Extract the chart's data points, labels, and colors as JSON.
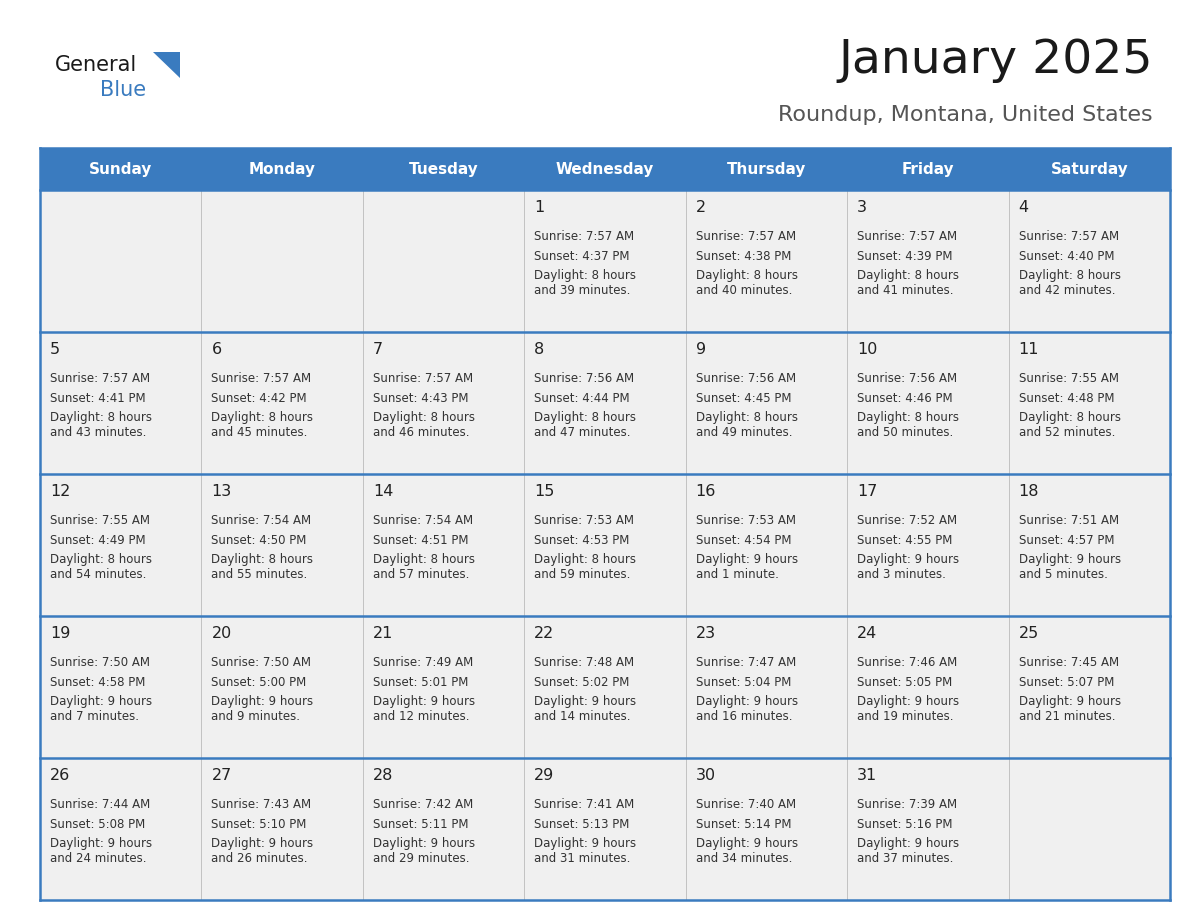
{
  "title": "January 2025",
  "subtitle": "Roundup, Montana, United States",
  "header_bg": "#3a7bbf",
  "header_text_color": "#ffffff",
  "cell_bg": "#f0f0f0",
  "grid_line_color": "#3a7bbf",
  "days_of_week": [
    "Sunday",
    "Monday",
    "Tuesday",
    "Wednesday",
    "Thursday",
    "Friday",
    "Saturday"
  ],
  "weeks": [
    [
      {
        "day": "",
        "sunrise": "",
        "sunset": "",
        "daylight": ""
      },
      {
        "day": "",
        "sunrise": "",
        "sunset": "",
        "daylight": ""
      },
      {
        "day": "",
        "sunrise": "",
        "sunset": "",
        "daylight": ""
      },
      {
        "day": "1",
        "sunrise": "7:57 AM",
        "sunset": "4:37 PM",
        "daylight": "8 hours\nand 39 minutes."
      },
      {
        "day": "2",
        "sunrise": "7:57 AM",
        "sunset": "4:38 PM",
        "daylight": "8 hours\nand 40 minutes."
      },
      {
        "day": "3",
        "sunrise": "7:57 AM",
        "sunset": "4:39 PM",
        "daylight": "8 hours\nand 41 minutes."
      },
      {
        "day": "4",
        "sunrise": "7:57 AM",
        "sunset": "4:40 PM",
        "daylight": "8 hours\nand 42 minutes."
      }
    ],
    [
      {
        "day": "5",
        "sunrise": "7:57 AM",
        "sunset": "4:41 PM",
        "daylight": "8 hours\nand 43 minutes."
      },
      {
        "day": "6",
        "sunrise": "7:57 AM",
        "sunset": "4:42 PM",
        "daylight": "8 hours\nand 45 minutes."
      },
      {
        "day": "7",
        "sunrise": "7:57 AM",
        "sunset": "4:43 PM",
        "daylight": "8 hours\nand 46 minutes."
      },
      {
        "day": "8",
        "sunrise": "7:56 AM",
        "sunset": "4:44 PM",
        "daylight": "8 hours\nand 47 minutes."
      },
      {
        "day": "9",
        "sunrise": "7:56 AM",
        "sunset": "4:45 PM",
        "daylight": "8 hours\nand 49 minutes."
      },
      {
        "day": "10",
        "sunrise": "7:56 AM",
        "sunset": "4:46 PM",
        "daylight": "8 hours\nand 50 minutes."
      },
      {
        "day": "11",
        "sunrise": "7:55 AM",
        "sunset": "4:48 PM",
        "daylight": "8 hours\nand 52 minutes."
      }
    ],
    [
      {
        "day": "12",
        "sunrise": "7:55 AM",
        "sunset": "4:49 PM",
        "daylight": "8 hours\nand 54 minutes."
      },
      {
        "day": "13",
        "sunrise": "7:54 AM",
        "sunset": "4:50 PM",
        "daylight": "8 hours\nand 55 minutes."
      },
      {
        "day": "14",
        "sunrise": "7:54 AM",
        "sunset": "4:51 PM",
        "daylight": "8 hours\nand 57 minutes."
      },
      {
        "day": "15",
        "sunrise": "7:53 AM",
        "sunset": "4:53 PM",
        "daylight": "8 hours\nand 59 minutes."
      },
      {
        "day": "16",
        "sunrise": "7:53 AM",
        "sunset": "4:54 PM",
        "daylight": "9 hours\nand 1 minute."
      },
      {
        "day": "17",
        "sunrise": "7:52 AM",
        "sunset": "4:55 PM",
        "daylight": "9 hours\nand 3 minutes."
      },
      {
        "day": "18",
        "sunrise": "7:51 AM",
        "sunset": "4:57 PM",
        "daylight": "9 hours\nand 5 minutes."
      }
    ],
    [
      {
        "day": "19",
        "sunrise": "7:50 AM",
        "sunset": "4:58 PM",
        "daylight": "9 hours\nand 7 minutes."
      },
      {
        "day": "20",
        "sunrise": "7:50 AM",
        "sunset": "5:00 PM",
        "daylight": "9 hours\nand 9 minutes."
      },
      {
        "day": "21",
        "sunrise": "7:49 AM",
        "sunset": "5:01 PM",
        "daylight": "9 hours\nand 12 minutes."
      },
      {
        "day": "22",
        "sunrise": "7:48 AM",
        "sunset": "5:02 PM",
        "daylight": "9 hours\nand 14 minutes."
      },
      {
        "day": "23",
        "sunrise": "7:47 AM",
        "sunset": "5:04 PM",
        "daylight": "9 hours\nand 16 minutes."
      },
      {
        "day": "24",
        "sunrise": "7:46 AM",
        "sunset": "5:05 PM",
        "daylight": "9 hours\nand 19 minutes."
      },
      {
        "day": "25",
        "sunrise": "7:45 AM",
        "sunset": "5:07 PM",
        "daylight": "9 hours\nand 21 minutes."
      }
    ],
    [
      {
        "day": "26",
        "sunrise": "7:44 AM",
        "sunset": "5:08 PM",
        "daylight": "9 hours\nand 24 minutes."
      },
      {
        "day": "27",
        "sunrise": "7:43 AM",
        "sunset": "5:10 PM",
        "daylight": "9 hours\nand 26 minutes."
      },
      {
        "day": "28",
        "sunrise": "7:42 AM",
        "sunset": "5:11 PM",
        "daylight": "9 hours\nand 29 minutes."
      },
      {
        "day": "29",
        "sunrise": "7:41 AM",
        "sunset": "5:13 PM",
        "daylight": "9 hours\nand 31 minutes."
      },
      {
        "day": "30",
        "sunrise": "7:40 AM",
        "sunset": "5:14 PM",
        "daylight": "9 hours\nand 34 minutes."
      },
      {
        "day": "31",
        "sunrise": "7:39 AM",
        "sunset": "5:16 PM",
        "daylight": "9 hours\nand 37 minutes."
      },
      {
        "day": "",
        "sunrise": "",
        "sunset": "",
        "daylight": ""
      }
    ]
  ],
  "fig_width": 11.88,
  "fig_height": 9.18,
  "dpi": 100
}
